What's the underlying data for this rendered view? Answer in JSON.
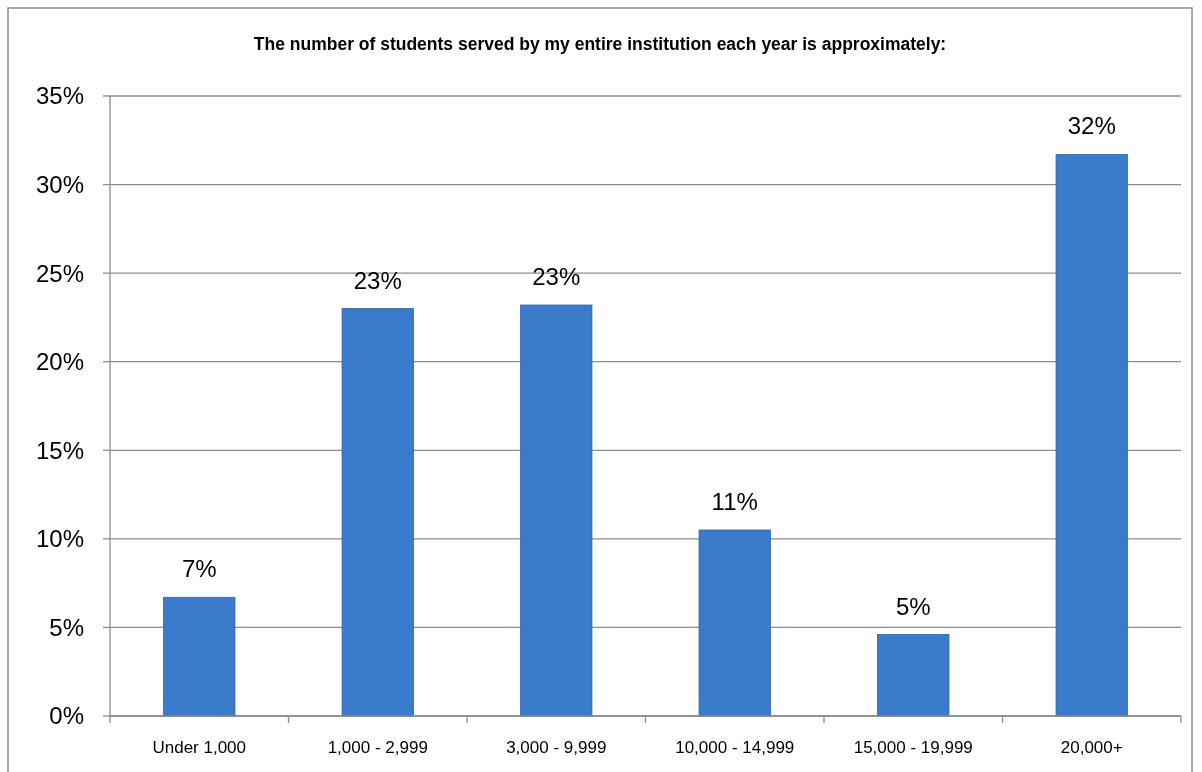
{
  "chart_data": {
    "type": "bar",
    "title": "The number of students served by my entire institution each year is approximately:",
    "categories": [
      "Under 1,000",
      "1,000 - 2,999",
      "3,000 - 9,999",
      "10,000 - 14,999",
      "15,000 - 19,999",
      "20,000+"
    ],
    "values": [
      6.7,
      23.0,
      23.2,
      10.5,
      4.6,
      31.7
    ],
    "value_labels": [
      "7%",
      "23%",
      "23%",
      "11%",
      "5%",
      "32%"
    ],
    "color": "#3b7bcb",
    "ylim": [
      0,
      35
    ],
    "yticks": [
      {
        "value": 0,
        "label": "0%"
      },
      {
        "value": 5,
        "label": "5%"
      },
      {
        "value": 10,
        "label": "10%"
      },
      {
        "value": 15,
        "label": "15%"
      },
      {
        "value": 20,
        "label": "20%"
      },
      {
        "value": 25,
        "label": "25%"
      },
      {
        "value": 30,
        "label": "30%"
      },
      {
        "value": 35,
        "label": "35%"
      }
    ],
    "grid": "y"
  }
}
